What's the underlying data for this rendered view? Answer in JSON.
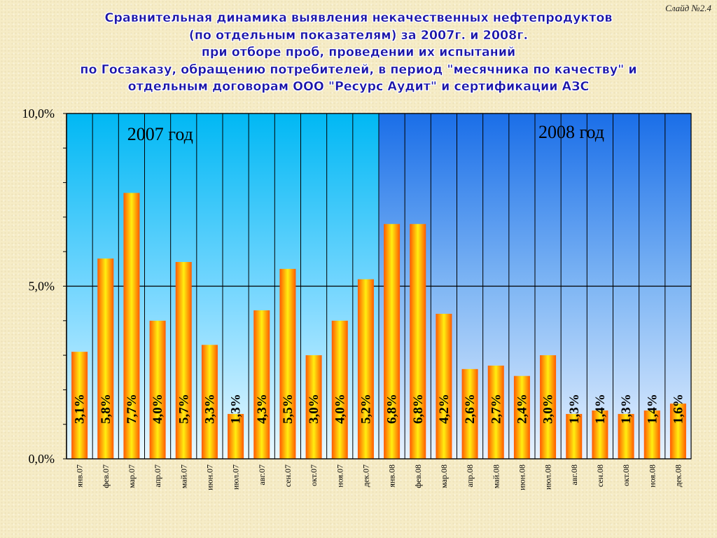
{
  "slide_label": "Слайд №2.4",
  "title_lines": [
    "Сравнительная динамика выявления некачественных нефтепродуктов",
    "(по отдельным показателям) за 2007г. и  2008г.",
    "при отборе проб, проведении их испытаний",
    "по Госзаказу, обращению потребителей, в период \"месячника по качеству\" и",
    "отдельным договорам ООО \"Ресурс Аудит\" и сертификации АЗС"
  ],
  "colors": {
    "title": "#1a14a8",
    "panel_2007_top": "#00b8f4",
    "panel_2007_bottom": "#eaf8ff",
    "panel_2008_top": "#1a6ee8",
    "panel_2008_bottom": "#e8f2ff",
    "bar_edge": "#ff5a00",
    "bar_center": "#ffee10",
    "label_text": "#000000"
  },
  "chart_data": {
    "type": "bar",
    "categories": [
      "янв.07",
      "фев.07",
      "мар.07",
      "апр.07",
      "май.07",
      "июн.07",
      "июл.07",
      "авг.07",
      "сен.07",
      "окт.07",
      "ноя.07",
      "дек.07",
      "янв.08",
      "фев.08",
      "мар.08",
      "апр.08",
      "май.08",
      "июн.08",
      "июл.08",
      "авг.08",
      "сен.08",
      "окт.08",
      "ноя.08",
      "дек.08"
    ],
    "values": [
      3.1,
      5.8,
      7.7,
      4.0,
      5.7,
      3.3,
      1.3,
      4.3,
      5.5,
      3.0,
      4.0,
      5.2,
      6.8,
      6.8,
      4.2,
      2.6,
      2.7,
      2.4,
      3.0,
      1.3,
      1.4,
      1.3,
      1.4,
      1.6
    ],
    "value_labels": [
      "3,1%",
      "5,8%",
      "7,7%",
      "4,0%",
      "5,7%",
      "3,3%",
      "1,3%",
      "4,3%",
      "5,5%",
      "3,0%",
      "4,0%",
      "5,2%",
      "6,8%",
      "6,8%",
      "4,2%",
      "2,6%",
      "2,7%",
      "2,4%",
      "3,0%",
      "1,3%",
      "1,4%",
      "1,3%",
      "1,4%",
      "1,6%"
    ],
    "ylim": [
      0,
      10
    ],
    "y_ticks": [
      0,
      5,
      10
    ],
    "y_tick_labels": [
      "0,0%",
      "5,0%",
      "10,0%"
    ],
    "grid": true,
    "groups": [
      {
        "label": "2007 год",
        "from": 0,
        "to": 11
      },
      {
        "label": "2008 год",
        "from": 12,
        "to": 23
      }
    ]
  }
}
